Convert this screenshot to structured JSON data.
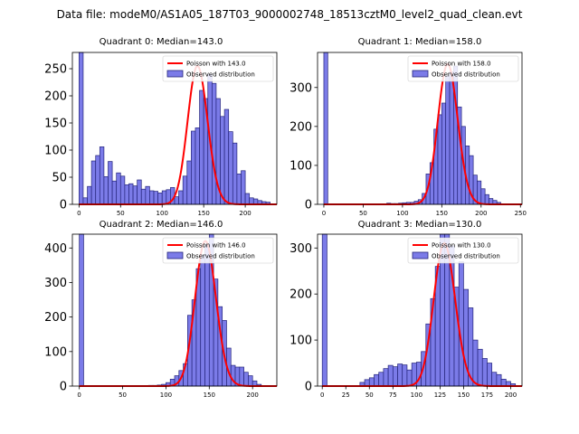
{
  "figure": {
    "suptitle": "Data file: modeM0/AS1A05_187T03_9000002748_18513cztM0_level2_quad_clean.evt"
  },
  "colors": {
    "bar_fill": "#7b7be8",
    "bar_edge": "#24247a",
    "fit_line": "#ff0000"
  },
  "chart_data": [
    {
      "type": "bar",
      "title": "Quadrant 0: Median=143.0",
      "legend": {
        "position": "top-right",
        "fit_label": "Poisson with 143.0",
        "obs_label": "Observed distribution"
      },
      "xlim": [
        -8,
        238
      ],
      "ylim": [
        0,
        280
      ],
      "xticks": [
        0,
        50,
        100,
        150,
        200
      ],
      "yticks": [
        0,
        50,
        100,
        150,
        200,
        250
      ],
      "bin_width": 5,
      "bins": [
        [
          0,
          280
        ],
        [
          5,
          12
        ],
        [
          10,
          33
        ],
        [
          15,
          80
        ],
        [
          20,
          90
        ],
        [
          25,
          106
        ],
        [
          30,
          51
        ],
        [
          35,
          79
        ],
        [
          40,
          43
        ],
        [
          45,
          58
        ],
        [
          50,
          52
        ],
        [
          55,
          36
        ],
        [
          60,
          38
        ],
        [
          65,
          34
        ],
        [
          70,
          45
        ],
        [
          75,
          28
        ],
        [
          80,
          33
        ],
        [
          85,
          25
        ],
        [
          90,
          24
        ],
        [
          95,
          21
        ],
        [
          100,
          25
        ],
        [
          105,
          27
        ],
        [
          110,
          31
        ],
        [
          115,
          14
        ],
        [
          120,
          25
        ],
        [
          125,
          52
        ],
        [
          130,
          80
        ],
        [
          135,
          135
        ],
        [
          140,
          141
        ],
        [
          145,
          210
        ],
        [
          150,
          195
        ],
        [
          155,
          240
        ],
        [
          160,
          223
        ],
        [
          165,
          195
        ],
        [
          170,
          162
        ],
        [
          175,
          175
        ],
        [
          180,
          134
        ],
        [
          185,
          113
        ],
        [
          190,
          56
        ],
        [
          195,
          62
        ],
        [
          200,
          20
        ],
        [
          205,
          12
        ],
        [
          210,
          10
        ],
        [
          215,
          7
        ],
        [
          220,
          5
        ],
        [
          225,
          4
        ]
      ],
      "fit": {
        "lambda": 143.0,
        "peak": 255
      }
    },
    {
      "type": "bar",
      "title": "Quadrant 1: Median=158.0",
      "legend": {
        "position": "top-right",
        "fit_label": "Poisson with 158.0",
        "obs_label": "Observed distribution"
      },
      "xlim": [
        -8,
        252
      ],
      "ylim": [
        0,
        390
      ],
      "xticks": [
        0,
        50,
        100,
        150,
        200,
        250
      ],
      "yticks": [
        0,
        100,
        200,
        300
      ],
      "bin_width": 5,
      "bins": [
        [
          0,
          390
        ],
        [
          80,
          3
        ],
        [
          85,
          2
        ],
        [
          90,
          2
        ],
        [
          95,
          3
        ],
        [
          100,
          4
        ],
        [
          105,
          5
        ],
        [
          110,
          5
        ],
        [
          115,
          8
        ],
        [
          120,
          12
        ],
        [
          125,
          28
        ],
        [
          130,
          78
        ],
        [
          135,
          107
        ],
        [
          140,
          193
        ],
        [
          145,
          230
        ],
        [
          150,
          260
        ],
        [
          155,
          330
        ],
        [
          160,
          340
        ],
        [
          165,
          355
        ],
        [
          170,
          250
        ],
        [
          175,
          200
        ],
        [
          180,
          150
        ],
        [
          185,
          125
        ],
        [
          190,
          75
        ],
        [
          195,
          60
        ],
        [
          200,
          40
        ],
        [
          205,
          25
        ],
        [
          210,
          15
        ],
        [
          215,
          10
        ],
        [
          220,
          5
        ]
      ],
      "fit": {
        "lambda": 158.0,
        "peak": 360
      }
    },
    {
      "type": "bar",
      "title": "Quadrant 2: Median=146.0",
      "legend": {
        "position": "top-right",
        "fit_label": "Poisson with 146.0",
        "obs_label": "Observed distribution"
      },
      "xlim": [
        -8,
        228
      ],
      "ylim": [
        0,
        440
      ],
      "xticks": [
        0,
        50,
        100,
        150,
        200
      ],
      "yticks": [
        0,
        100,
        200,
        300,
        400
      ],
      "bin_width": 5,
      "bins": [
        [
          0,
          440
        ],
        [
          80,
          2
        ],
        [
          85,
          2
        ],
        [
          90,
          3
        ],
        [
          95,
          5
        ],
        [
          100,
          10
        ],
        [
          105,
          20
        ],
        [
          110,
          30
        ],
        [
          115,
          45
        ],
        [
          120,
          65
        ],
        [
          125,
          205
        ],
        [
          130,
          250
        ],
        [
          135,
          340
        ],
        [
          140,
          380
        ],
        [
          145,
          410
        ],
        [
          150,
          450
        ],
        [
          155,
          310
        ],
        [
          160,
          230
        ],
        [
          165,
          190
        ],
        [
          170,
          110
        ],
        [
          175,
          60
        ],
        [
          180,
          55
        ],
        [
          185,
          55
        ],
        [
          190,
          40
        ],
        [
          195,
          30
        ],
        [
          200,
          15
        ],
        [
          205,
          5
        ]
      ],
      "fit": {
        "lambda": 146.0,
        "peak": 420
      }
    },
    {
      "type": "bar",
      "title": "Quadrant 3: Median=130.0",
      "legend": {
        "position": "top-right",
        "fit_label": "Poisson with 130.0",
        "obs_label": "Observed distribution"
      },
      "xlim": [
        -5,
        212
      ],
      "ylim": [
        0,
        330
      ],
      "xticks": [
        0,
        25,
        50,
        75,
        100,
        125,
        150,
        175,
        200
      ],
      "yticks": [
        0,
        100,
        200,
        300
      ],
      "bin_width": 5,
      "bins": [
        [
          0,
          330
        ],
        [
          40,
          8
        ],
        [
          45,
          14
        ],
        [
          50,
          18
        ],
        [
          55,
          25
        ],
        [
          60,
          30
        ],
        [
          65,
          38
        ],
        [
          70,
          45
        ],
        [
          75,
          42
        ],
        [
          80,
          48
        ],
        [
          85,
          46
        ],
        [
          90,
          35
        ],
        [
          95,
          50
        ],
        [
          100,
          52
        ],
        [
          105,
          75
        ],
        [
          110,
          135
        ],
        [
          115,
          190
        ],
        [
          120,
          260
        ],
        [
          125,
          330
        ],
        [
          130,
          330
        ],
        [
          135,
          305
        ],
        [
          140,
          215
        ],
        [
          145,
          270
        ],
        [
          150,
          210
        ],
        [
          155,
          170
        ],
        [
          160,
          100
        ],
        [
          165,
          80
        ],
        [
          170,
          60
        ],
        [
          175,
          50
        ],
        [
          180,
          30
        ],
        [
          185,
          25
        ],
        [
          190,
          15
        ],
        [
          195,
          10
        ],
        [
          200,
          5
        ]
      ],
      "fit": {
        "lambda": 130.0,
        "peak": 310
      }
    }
  ]
}
